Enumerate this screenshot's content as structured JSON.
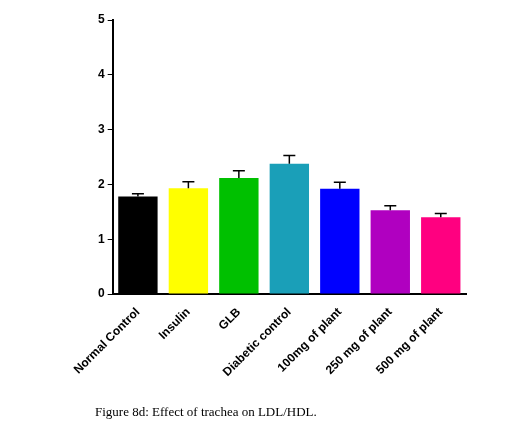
{
  "chart_data": {
    "type": "bar",
    "title": "Figure 8d: Effect of trachea on LDL/HDL.",
    "categories": [
      "Normal Control",
      "Insulin",
      "GLB",
      "Diabetic control",
      "100mg of plant",
      "250 mg of plant",
      "500 mg of plant"
    ],
    "values": [
      1.78,
      1.93,
      2.12,
      2.38,
      1.92,
      1.53,
      1.4
    ],
    "errors": [
      0.05,
      0.12,
      0.13,
      0.15,
      0.12,
      0.08,
      0.07
    ],
    "colors": [
      "#000000",
      "#ffff00",
      "#00c000",
      "#1a9fb8",
      "#0000ff",
      "#b000c0",
      "#ff0080"
    ],
    "ylim": [
      0,
      5
    ],
    "yticks": [
      0,
      1,
      2,
      3,
      4,
      5
    ],
    "grid": false
  }
}
